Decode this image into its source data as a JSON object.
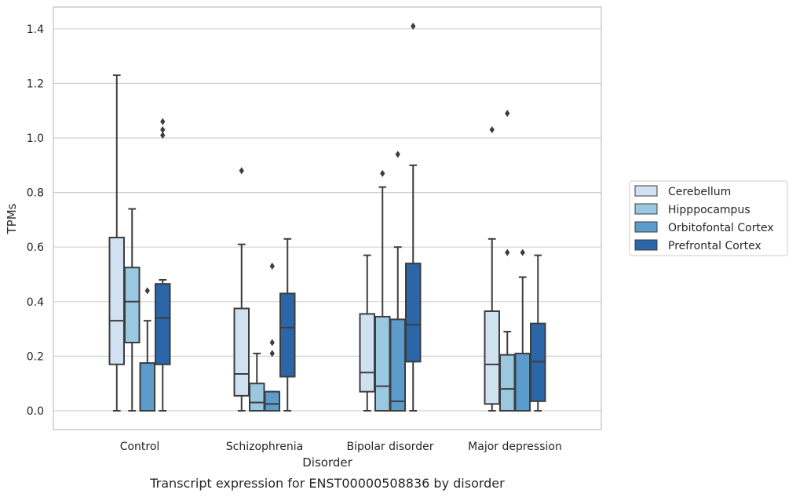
{
  "chart_data": {
    "type": "box",
    "xlabel": "Disorder",
    "ylabel": "TPMs",
    "caption": "Transcript expression for ENST00000508836 by disorder",
    "ylim": [
      -0.07,
      1.48
    ],
    "yticks": [
      0.0,
      0.2,
      0.4,
      0.6,
      0.8,
      1.0,
      1.2,
      1.4
    ],
    "ytick_labels": [
      "0.0",
      "0.2",
      "0.4",
      "0.6",
      "0.8",
      "1.0",
      "1.2",
      "1.4"
    ],
    "grid": "horizontal",
    "legend_position": "right",
    "categories": [
      "Control",
      "Schizophrenia",
      "Bipolar disorder",
      "Major depression"
    ],
    "series": [
      {
        "name": "Cerebellum",
        "color": "#d0e1f2",
        "boxes": [
          {
            "min": 0.0,
            "q1": 0.17,
            "median": 0.33,
            "q3": 0.635,
            "max": 1.23,
            "outliers": []
          },
          {
            "min": 0.0,
            "q1": 0.055,
            "median": 0.135,
            "q3": 0.375,
            "max": 0.61,
            "outliers": [
              0.88
            ]
          },
          {
            "min": 0.0,
            "q1": 0.07,
            "median": 0.14,
            "q3": 0.355,
            "max": 0.57,
            "outliers": []
          },
          {
            "min": 0.0,
            "q1": 0.025,
            "median": 0.17,
            "q3": 0.365,
            "max": 0.63,
            "outliers": [
              1.03
            ]
          }
        ]
      },
      {
        "name": "Hipppocampus",
        "color": "#9ac8e0",
        "boxes": [
          {
            "min": 0.0,
            "q1": 0.25,
            "median": 0.4,
            "q3": 0.525,
            "max": 0.74,
            "outliers": []
          },
          {
            "min": 0.0,
            "q1": 0.0,
            "median": 0.03,
            "q3": 0.1,
            "max": 0.21,
            "outliers": []
          },
          {
            "min": 0.0,
            "q1": 0.0,
            "median": 0.09,
            "q3": 0.345,
            "max": 0.82,
            "outliers": [
              0.87
            ]
          },
          {
            "min": 0.0,
            "q1": 0.0,
            "median": 0.08,
            "q3": 0.205,
            "max": 0.29,
            "outliers": [
              0.58,
              1.09
            ]
          }
        ]
      },
      {
        "name": "Orbitofontal Cortex",
        "color": "#5b9ccc",
        "boxes": [
          {
            "min": 0.0,
            "q1": 0.0,
            "median": 0.0,
            "q3": 0.175,
            "max": 0.33,
            "outliers": [
              0.44
            ]
          },
          {
            "min": 0.0,
            "q1": 0.0,
            "median": 0.025,
            "q3": 0.07,
            "max": 0.07,
            "outliers": [
              0.21,
              0.25,
              0.53
            ]
          },
          {
            "min": 0.0,
            "q1": 0.0,
            "median": 0.035,
            "q3": 0.335,
            "max": 0.6,
            "outliers": [
              0.94
            ]
          },
          {
            "min": 0.0,
            "q1": 0.0,
            "median": 0.0,
            "q3": 0.21,
            "max": 0.49,
            "outliers": [
              0.58
            ]
          }
        ]
      },
      {
        "name": "Prefrontal Cortex",
        "color": "#2a66a8",
        "boxes": [
          {
            "min": 0.0,
            "q1": 0.17,
            "median": 0.34,
            "q3": 0.465,
            "max": 0.48,
            "outliers": [
              1.01,
              1.03,
              1.06
            ]
          },
          {
            "min": 0.0,
            "q1": 0.125,
            "median": 0.305,
            "q3": 0.43,
            "max": 0.63,
            "outliers": []
          },
          {
            "min": 0.0,
            "q1": 0.18,
            "median": 0.315,
            "q3": 0.54,
            "max": 0.9,
            "outliers": [
              1.41
            ]
          },
          {
            "min": 0.0,
            "q1": 0.035,
            "median": 0.18,
            "q3": 0.32,
            "max": 0.57,
            "outliers": []
          }
        ]
      }
    ]
  }
}
